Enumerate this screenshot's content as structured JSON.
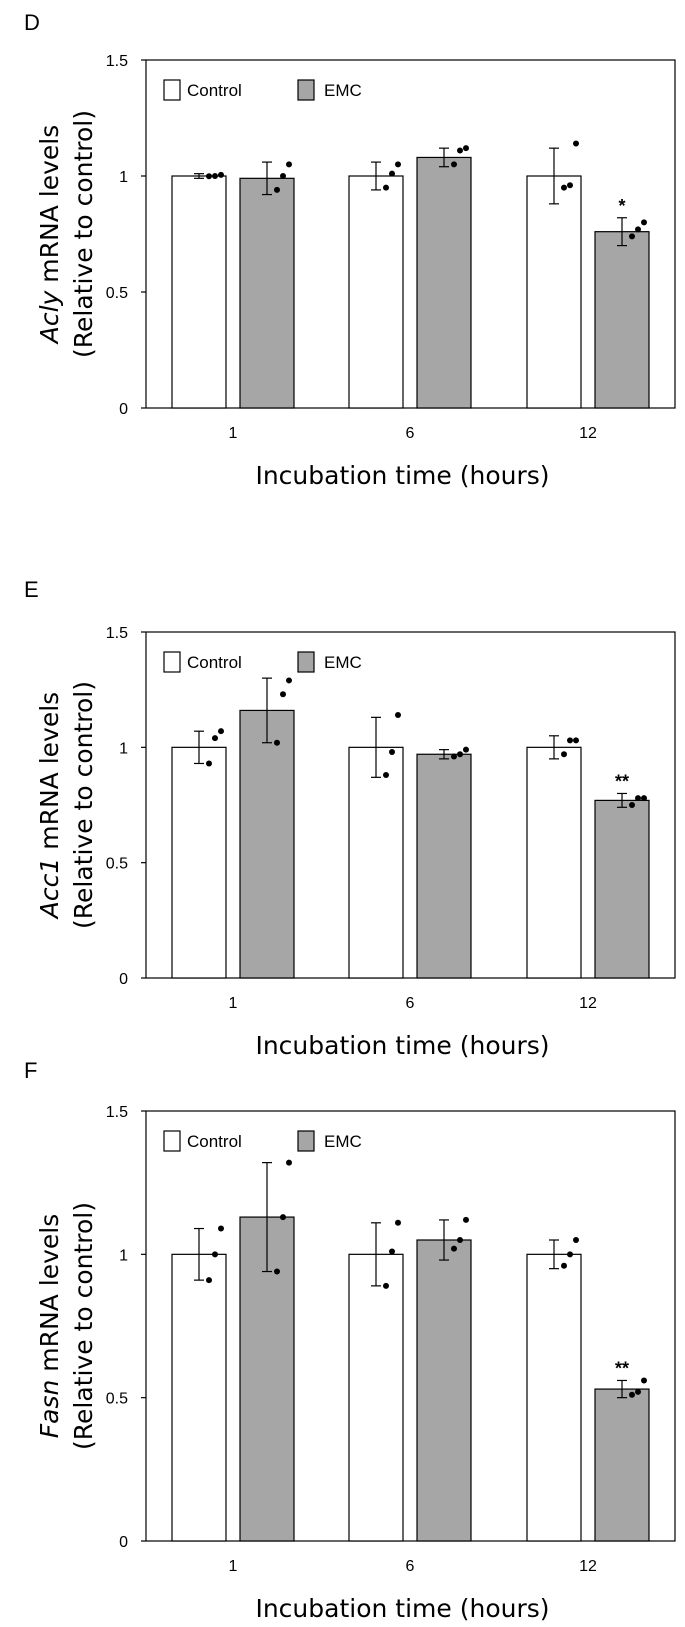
{
  "chart_data": [
    {
      "panel": "D",
      "type": "bar",
      "gene": "Acly",
      "ylabel_rest": " mRNA levels",
      "ylabel_line2": "(Relative to control)",
      "xlabel": "Incubation time (hours)",
      "ylim": [
        0,
        1.5
      ],
      "yticks": [
        "0",
        "0.5",
        "1",
        "1.5"
      ],
      "categories": [
        "1",
        "6",
        "12"
      ],
      "series": [
        {
          "name": "Control",
          "color": "#ffffff",
          "values": [
            1.0,
            1.0,
            1.0
          ],
          "errors": [
            0.01,
            0.06,
            0.12
          ],
          "points": [
            [
              0.999,
              1.0,
              1.005
            ],
            [
              0.95,
              1.01,
              1.05
            ],
            [
              0.95,
              0.96,
              1.14
            ]
          ]
        },
        {
          "name": "EMC",
          "color": "#a6a6a6",
          "values": [
            0.99,
            1.08,
            0.76
          ],
          "errors": [
            0.07,
            0.04,
            0.06
          ],
          "points": [
            [
              0.94,
              1.0,
              1.05
            ],
            [
              1.05,
              1.11,
              1.12
            ],
            [
              0.74,
              0.77,
              0.8
            ]
          ]
        }
      ],
      "significance": [
        "",
        "",
        "*"
      ]
    },
    {
      "panel": "E",
      "type": "bar",
      "gene": "Acc1",
      "ylabel_rest": " mRNA levels",
      "ylabel_line2": "(Relative to control)",
      "xlabel": "Incubation time (hours)",
      "ylim": [
        0,
        1.5
      ],
      "yticks": [
        "0",
        "0.5",
        "1",
        "1.5"
      ],
      "categories": [
        "1",
        "6",
        "12"
      ],
      "series": [
        {
          "name": "Control",
          "color": "#ffffff",
          "values": [
            1.0,
            1.0,
            1.0
          ],
          "errors": [
            0.07,
            0.13,
            0.05
          ],
          "points": [
            [
              0.93,
              1.04,
              1.07
            ],
            [
              0.88,
              0.98,
              1.14
            ],
            [
              0.97,
              1.03,
              1.03
            ]
          ]
        },
        {
          "name": "EMC",
          "color": "#a6a6a6",
          "values": [
            1.16,
            0.97,
            0.77
          ],
          "errors": [
            0.14,
            0.02,
            0.03
          ],
          "points": [
            [
              1.02,
              1.23,
              1.29
            ],
            [
              0.96,
              0.97,
              0.99
            ],
            [
              0.75,
              0.78,
              0.78
            ]
          ]
        }
      ],
      "significance": [
        "",
        "",
        "**"
      ]
    },
    {
      "panel": "F",
      "type": "bar",
      "gene": "Fasn",
      "ylabel_rest": " mRNA levels",
      "ylabel_line2": "(Relative to control)",
      "xlabel": "Incubation time (hours)",
      "ylim": [
        0,
        1.5
      ],
      "yticks": [
        "0",
        "0.5",
        "1",
        "1.5"
      ],
      "categories": [
        "1",
        "6",
        "12"
      ],
      "series": [
        {
          "name": "Control",
          "color": "#ffffff",
          "values": [
            1.0,
            1.0,
            1.0
          ],
          "errors": [
            0.09,
            0.11,
            0.05
          ],
          "points": [
            [
              0.91,
              1.0,
              1.09
            ],
            [
              0.89,
              1.01,
              1.11
            ],
            [
              0.96,
              1.0,
              1.05
            ]
          ]
        },
        {
          "name": "EMC",
          "color": "#a6a6a6",
          "values": [
            1.13,
            1.05,
            0.53
          ],
          "errors": [
            0.19,
            0.07,
            0.03
          ],
          "points": [
            [
              0.94,
              1.13,
              1.32
            ],
            [
              1.02,
              1.05,
              1.12
            ],
            [
              0.51,
              0.52,
              0.56
            ]
          ]
        }
      ],
      "significance": [
        "",
        "",
        "**"
      ]
    }
  ]
}
